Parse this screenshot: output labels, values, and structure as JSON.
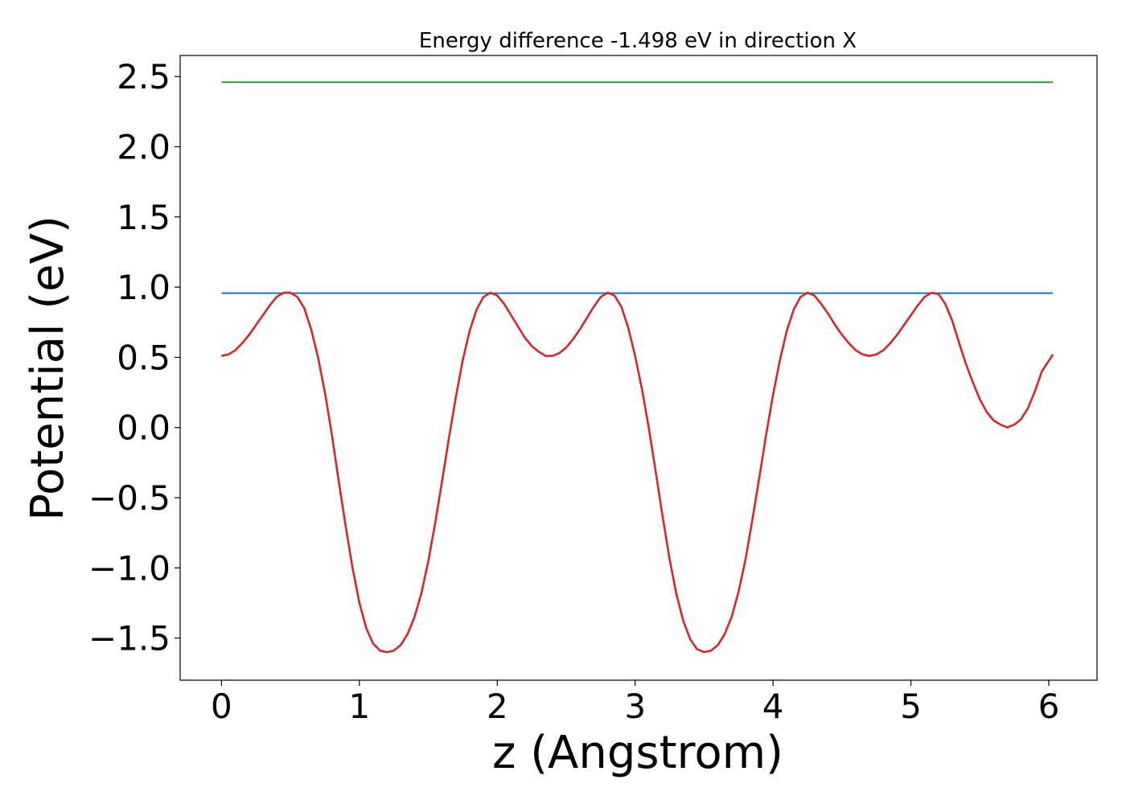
{
  "chart_data": {
    "type": "line",
    "title": "Energy difference -1.498 eV in direction X",
    "xlabel": "z (Angstrom)",
    "ylabel": "Potential (eV)",
    "xlim": [
      -0.3,
      6.35
    ],
    "ylim": [
      -1.8,
      2.65
    ],
    "xticks": [
      0,
      1,
      2,
      3,
      4,
      5,
      6
    ],
    "xtick_labels": [
      "0",
      "1",
      "2",
      "3",
      "4",
      "5",
      "6"
    ],
    "yticks": [
      2.5,
      2.0,
      1.5,
      1.0,
      0.5,
      0.0,
      -0.5,
      -1.0,
      -1.5
    ],
    "ytick_labels": [
      "2.5",
      "2.0",
      "1.5",
      "1.0",
      "0.5",
      "0.0",
      "−0.5",
      "−1.0",
      "−1.5"
    ],
    "grid": false,
    "series": [
      {
        "color": "#2ca02c",
        "x": [
          0.0,
          6.03
        ],
        "y": [
          2.46,
          2.46
        ]
      },
      {
        "color": "#1f77b4",
        "x": [
          0.0,
          6.03
        ],
        "y": [
          0.957,
          0.957
        ]
      },
      {
        "color": "#d62728",
        "x": [
          0.0,
          0.05,
          0.1,
          0.15,
          0.2,
          0.25,
          0.3,
          0.35,
          0.4,
          0.45,
          0.5,
          0.55,
          0.6,
          0.65,
          0.7,
          0.75,
          0.8,
          0.85,
          0.9,
          0.95,
          1.0,
          1.05,
          1.1,
          1.15,
          1.2,
          1.25,
          1.3,
          1.35,
          1.4,
          1.45,
          1.5,
          1.55,
          1.6,
          1.65,
          1.7,
          1.75,
          1.8,
          1.85,
          1.9,
          1.95,
          2.0,
          2.05,
          2.1,
          2.15,
          2.2,
          2.25,
          2.3,
          2.35,
          2.4,
          2.45,
          2.5,
          2.55,
          2.6,
          2.65,
          2.7,
          2.75,
          2.8,
          2.85,
          2.9,
          2.95,
          3.0,
          3.05,
          3.1,
          3.15,
          3.2,
          3.25,
          3.3,
          3.35,
          3.4,
          3.45,
          3.5,
          3.55,
          3.6,
          3.65,
          3.7,
          3.75,
          3.8,
          3.85,
          3.9,
          3.95,
          4.0,
          4.05,
          4.1,
          4.15,
          4.2,
          4.25,
          4.3,
          4.35,
          4.4,
          4.45,
          4.5,
          4.55,
          4.6,
          4.65,
          4.7,
          4.75,
          4.8,
          4.85,
          4.9,
          4.95,
          5.0,
          5.05,
          5.1,
          5.15,
          5.2,
          5.25,
          5.3,
          5.35,
          5.4,
          5.45,
          5.5,
          5.55,
          5.6,
          5.65,
          5.7,
          5.75,
          5.8,
          5.85,
          5.9,
          5.95,
          6.03
        ],
        "y": [
          0.51,
          0.52,
          0.55,
          0.6,
          0.66,
          0.73,
          0.8,
          0.87,
          0.93,
          0.96,
          0.96,
          0.93,
          0.85,
          0.7,
          0.5,
          0.25,
          -0.05,
          -0.38,
          -0.7,
          -1.0,
          -1.25,
          -1.43,
          -1.54,
          -1.59,
          -1.6,
          -1.59,
          -1.55,
          -1.47,
          -1.35,
          -1.18,
          -0.95,
          -0.68,
          -0.38,
          -0.07,
          0.22,
          0.48,
          0.69,
          0.84,
          0.93,
          0.96,
          0.94,
          0.88,
          0.8,
          0.72,
          0.64,
          0.58,
          0.54,
          0.51,
          0.51,
          0.53,
          0.57,
          0.63,
          0.7,
          0.78,
          0.86,
          0.93,
          0.96,
          0.94,
          0.86,
          0.71,
          0.51,
          0.27,
          -0.01,
          -0.32,
          -0.64,
          -0.94,
          -1.19,
          -1.38,
          -1.51,
          -1.58,
          -1.6,
          -1.59,
          -1.55,
          -1.47,
          -1.35,
          -1.17,
          -0.94,
          -0.66,
          -0.36,
          -0.05,
          0.23,
          0.48,
          0.69,
          0.84,
          0.93,
          0.96,
          0.94,
          0.88,
          0.81,
          0.73,
          0.66,
          0.6,
          0.55,
          0.52,
          0.51,
          0.52,
          0.55,
          0.6,
          0.66,
          0.73,
          0.8,
          0.87,
          0.93,
          0.96,
          0.95,
          0.88,
          0.76,
          0.6,
          0.45,
          0.32,
          0.2,
          0.11,
          0.05,
          0.02,
          0.0,
          0.02,
          0.06,
          0.14,
          0.26,
          0.4,
          0.52
        ]
      }
    ]
  }
}
